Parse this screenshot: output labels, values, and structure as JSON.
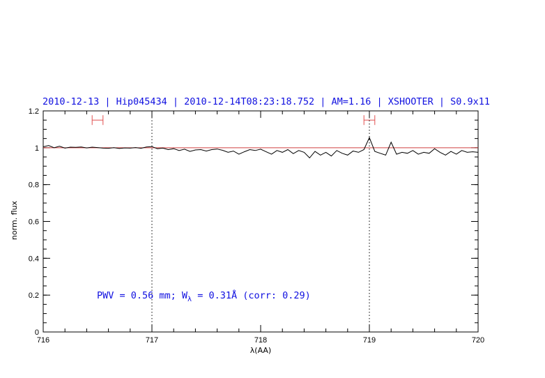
{
  "chart_data": {
    "type": "line",
    "title": "2010-12-13 | Hip045434 | 2010-12-14T08:23:18.752 | AM=1.16 | XSHOOTER | S0.9x11",
    "xlabel": "λ(AA)",
    "ylabel": "norm. flux",
    "xlim": [
      716,
      720
    ],
    "ylim": [
      0,
      1.2
    ],
    "xticks": [
      "716",
      "717",
      "718",
      "719",
      "720"
    ],
    "yticks": [
      "0",
      "0.2",
      "0.4",
      "0.6",
      "0.8",
      "1",
      "1.2"
    ],
    "reference_line": {
      "y": 1.0,
      "color": "#d04040"
    },
    "vertical_markers": [
      717.0,
      719.0
    ],
    "ranges": [
      {
        "x0": 716.45,
        "x1": 716.55,
        "y": 1.15,
        "color": "#e05050"
      },
      {
        "x0": 718.95,
        "x1": 719.05,
        "y": 1.15,
        "color": "#e05050"
      }
    ],
    "annotation": {
      "prefix": "PWV = 0.56 mm; W",
      "subscript": "λ",
      "suffix": " = 0.31Å (corr: 0.29)"
    },
    "series": [
      {
        "color": "#000000",
        "x": [
          716.0,
          716.05,
          716.1,
          716.15,
          716.2,
          716.25,
          716.3,
          716.35,
          716.4,
          716.45,
          716.5,
          716.55,
          716.6,
          716.65,
          716.7,
          716.75,
          716.8,
          716.85,
          716.9,
          716.95,
          717.0,
          717.05,
          717.1,
          717.15,
          717.2,
          717.25,
          717.3,
          717.35,
          717.4,
          717.45,
          717.5,
          717.55,
          717.6,
          717.65,
          717.7,
          717.75,
          717.8,
          717.85,
          717.9,
          717.95,
          718.0,
          718.05,
          718.1,
          718.15,
          718.2,
          718.25,
          718.3,
          718.35,
          718.4,
          718.45,
          718.5,
          718.55,
          718.6,
          718.65,
          718.7,
          718.75,
          718.8,
          718.85,
          718.9,
          718.95,
          719.0,
          719.05,
          719.1,
          719.15,
          719.2,
          719.25,
          719.3,
          719.35,
          719.4,
          719.45,
          719.5,
          719.55,
          719.6,
          719.65,
          719.7,
          719.75,
          719.8,
          719.85,
          719.9,
          719.95,
          720.0
        ],
        "y": [
          1.005,
          1.012,
          1.0,
          1.008,
          0.998,
          1.003,
          1.002,
          1.004,
          0.999,
          1.003,
          1.001,
          0.998,
          0.997,
          1.0,
          0.996,
          0.999,
          0.998,
          1.001,
          0.997,
          1.004,
          1.006,
          0.995,
          0.998,
          0.99,
          0.995,
          0.985,
          0.992,
          0.98,
          0.988,
          0.99,
          0.982,
          0.99,
          0.993,
          0.986,
          0.975,
          0.982,
          0.965,
          0.978,
          0.99,
          0.985,
          0.992,
          0.978,
          0.965,
          0.985,
          0.975,
          0.99,
          0.968,
          0.985,
          0.975,
          0.945,
          0.98,
          0.96,
          0.975,
          0.955,
          0.985,
          0.97,
          0.96,
          0.982,
          0.975,
          0.99,
          1.055,
          0.98,
          0.97,
          0.96,
          1.03,
          0.965,
          0.975,
          0.97,
          0.985,
          0.965,
          0.975,
          0.97,
          0.995,
          0.975,
          0.96,
          0.98,
          0.965,
          0.985,
          0.975,
          0.978,
          0.975
        ]
      }
    ]
  }
}
